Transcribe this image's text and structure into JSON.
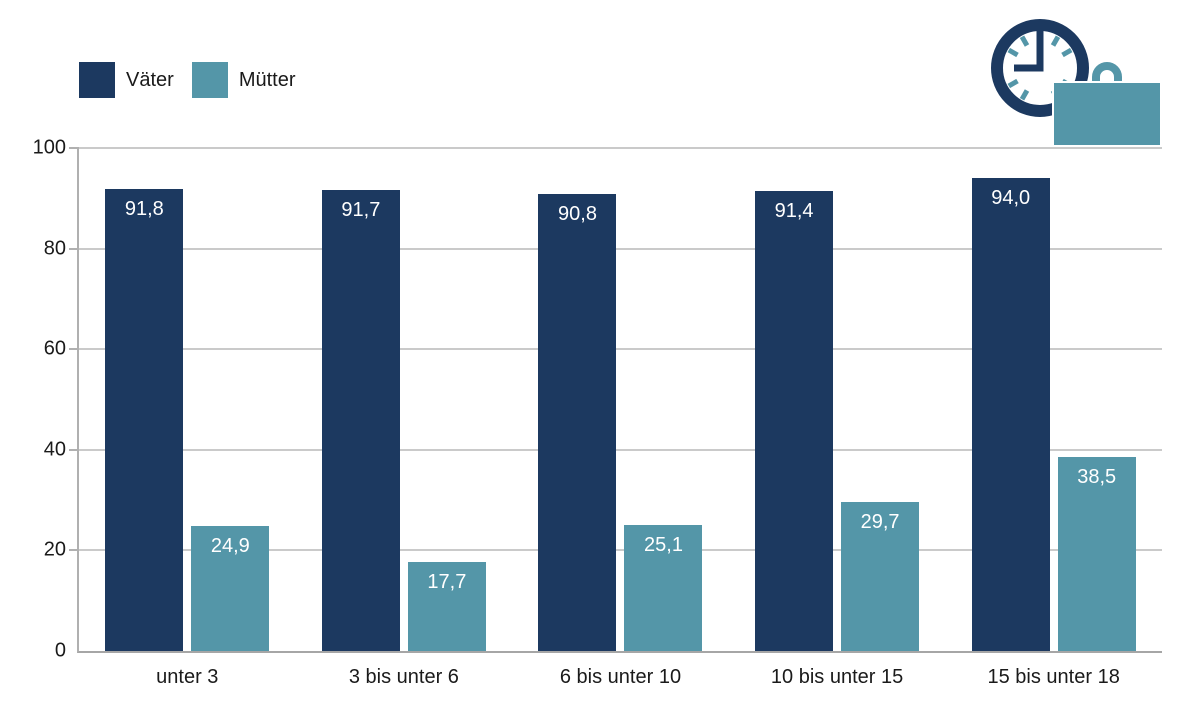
{
  "chart_data": {
    "type": "bar",
    "title": "",
    "xlabel": "",
    "ylabel": "",
    "categories": [
      "unter 3",
      "3 bis unter 6",
      "6 bis unter 10",
      "10 bis unter 15",
      "15 bis unter 18"
    ],
    "series": [
      {
        "name": "Väter",
        "color": "#1c3960",
        "values": [
          91.8,
          91.7,
          90.8,
          91.4,
          94.0
        ],
        "value_labels": [
          "91,8",
          "91,7",
          "90,8",
          "91,4",
          "94,0"
        ]
      },
      {
        "name": "Mütter",
        "color": "#5496a8",
        "values": [
          24.9,
          17.7,
          25.1,
          29.7,
          38.5
        ],
        "value_labels": [
          "24,9",
          "17,7",
          "25,1",
          "29,7",
          "38,5"
        ]
      }
    ],
    "y_axis": {
      "min": 0,
      "max": 100,
      "tick_labels": [
        "0",
        "20",
        "40",
        "60",
        "80",
        "100"
      ]
    },
    "grid": true,
    "legend_position": "top-left"
  },
  "legend": {
    "items": [
      {
        "label": "Väter",
        "color": "#1c3960"
      },
      {
        "label": "Mütter",
        "color": "#5496a8"
      }
    ]
  },
  "icons": {
    "top_right": "clock-and-briefcase-icon"
  },
  "colors": {
    "bar_vater": "#1c3960",
    "bar_mutter": "#5496a8",
    "gridline": "#cacaca",
    "axis": "#a6a6a6",
    "text": "#1a1a1a",
    "bar_value_text": "#ffffff"
  }
}
